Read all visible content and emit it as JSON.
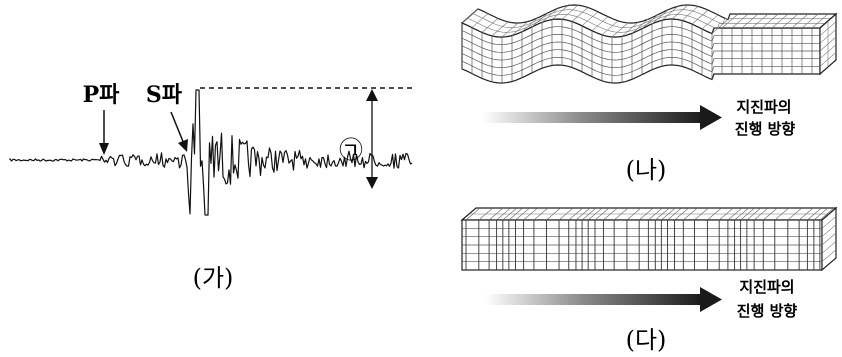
{
  "seismogram": {
    "p_wave_label": "P파",
    "s_wave_label": "S파",
    "amplitude_marker": "㉠",
    "caption": "(가)"
  },
  "wave_b": {
    "direction_label_line1": "지진파의",
    "direction_label_line2": "진행 방향",
    "caption": "(나)"
  },
  "wave_c": {
    "direction_label_line1": "지진파의",
    "direction_label_line2": "진행 방향",
    "caption": "(다)"
  }
}
